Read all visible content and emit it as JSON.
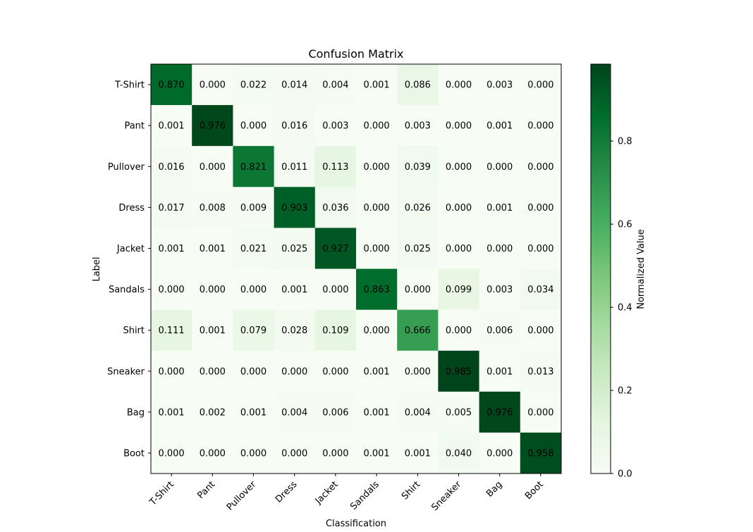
{
  "chart_data": {
    "type": "heatmap",
    "title": "Confusion Matrix",
    "xlabel": "Classification",
    "ylabel": "Label",
    "x_categories": [
      "T-Shirt",
      "Pant",
      "Pullover",
      "Dress",
      "Jacket",
      "Sandals",
      "Shirt",
      "Sneaker",
      "Bag",
      "Boot"
    ],
    "y_categories": [
      "T-Shirt",
      "Pant",
      "Pullover",
      "Dress",
      "Jacket",
      "Sandals",
      "Shirt",
      "Sneaker",
      "Bag",
      "Boot"
    ],
    "values": [
      [
        0.87,
        0.0,
        0.022,
        0.014,
        0.004,
        0.001,
        0.086,
        0.0,
        0.003,
        0.0
      ],
      [
        0.001,
        0.976,
        0.0,
        0.016,
        0.003,
        0.0,
        0.003,
        0.0,
        0.001,
        0.0
      ],
      [
        0.016,
        0.0,
        0.821,
        0.011,
        0.113,
        0.0,
        0.039,
        0.0,
        0.0,
        0.0
      ],
      [
        0.017,
        0.008,
        0.009,
        0.903,
        0.036,
        0.0,
        0.026,
        0.0,
        0.001,
        0.0
      ],
      [
        0.001,
        0.001,
        0.021,
        0.025,
        0.927,
        0.0,
        0.025,
        0.0,
        0.0,
        0.0
      ],
      [
        0.0,
        0.0,
        0.0,
        0.001,
        0.0,
        0.863,
        0.0,
        0.099,
        0.003,
        0.034
      ],
      [
        0.111,
        0.001,
        0.079,
        0.028,
        0.109,
        0.0,
        0.666,
        0.0,
        0.006,
        0.0
      ],
      [
        0.0,
        0.0,
        0.0,
        0.0,
        0.0,
        0.001,
        0.0,
        0.985,
        0.001,
        0.013
      ],
      [
        0.001,
        0.002,
        0.001,
        0.004,
        0.006,
        0.001,
        0.004,
        0.005,
        0.976,
        0.0
      ],
      [
        0.0,
        0.0,
        0.0,
        0.0,
        0.0,
        0.001,
        0.001,
        0.04,
        0.0,
        0.958
      ]
    ],
    "value_format_decimals": 3,
    "colormap": "Greens",
    "colormap_stops": [
      "#f7fcf5",
      "#e5f5e0",
      "#c7e9c0",
      "#a1d99b",
      "#74c476",
      "#41ab5d",
      "#238b45",
      "#006d2c",
      "#00441b"
    ],
    "vmin": 0.0,
    "vmax": 0.985,
    "grid": false,
    "colorbar": {
      "label": "Normalized Value",
      "ticks": [
        0.0,
        0.2,
        0.4,
        0.6,
        0.8
      ],
      "tick_labels": [
        "0.0",
        "0.2",
        "0.4",
        "0.6",
        "0.8"
      ],
      "placement": "right"
    }
  }
}
